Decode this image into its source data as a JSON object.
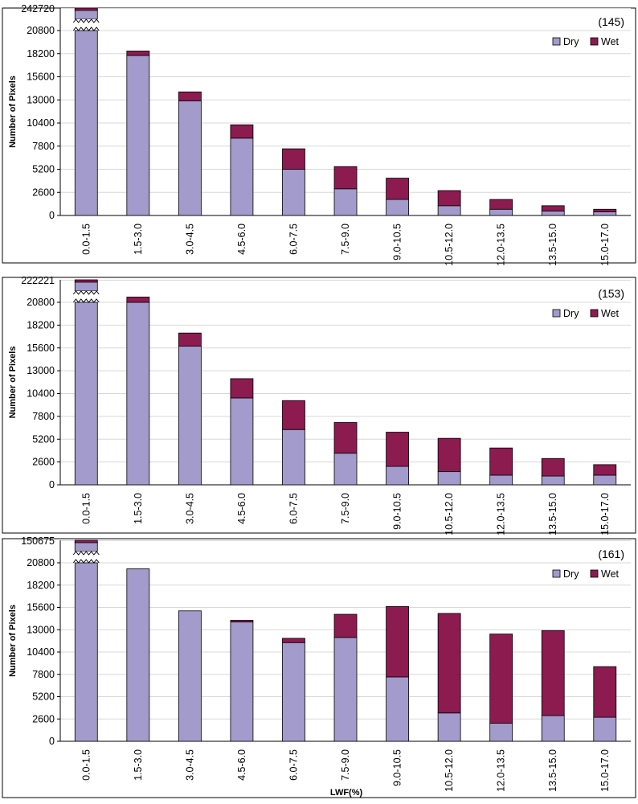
{
  "chart_data": [
    {
      "type": "bar",
      "stacked": true,
      "panel_label": "(145)",
      "ylabel": "Number of Pixels",
      "xlabel": "",
      "top_value_label": "242720",
      "yticks": [
        0,
        2600,
        5200,
        7800,
        10400,
        13000,
        15600,
        18200,
        20800
      ],
      "ylim": [
        0,
        23400
      ],
      "axis_break": true,
      "legend": [
        "Dry",
        "Wet"
      ],
      "categories": [
        "0.0-1.5",
        "1.5-3.0",
        "3.0-4.5",
        "4.5-6.0",
        "6.0-7.5",
        "7.5-9.0",
        "9.0-10.5",
        "10.5-12.0",
        "12.0-13.5",
        "13.5-15.0",
        "15.0-17.0"
      ],
      "series": [
        {
          "name": "Dry",
          "color": "#a39bcb",
          "values": [
            242700,
            18000,
            12900,
            8700,
            5200,
            3000,
            1800,
            1100,
            700,
            500,
            400
          ]
        },
        {
          "name": "Wet",
          "color": "#8c1b50",
          "values": [
            20,
            500,
            1000,
            1500,
            2300,
            2500,
            2400,
            1700,
            1100,
            600,
            300
          ]
        }
      ]
    },
    {
      "type": "bar",
      "stacked": true,
      "panel_label": "(153)",
      "ylabel": "Number of Pixels",
      "xlabel": "",
      "top_value_label": "222221",
      "yticks": [
        0,
        2600,
        5200,
        7800,
        10400,
        13000,
        15600,
        18200,
        20800
      ],
      "ylim": [
        0,
        23400
      ],
      "axis_break": true,
      "legend": [
        "Dry",
        "Wet"
      ],
      "categories": [
        "0.0-1.5",
        "1.5-3.0",
        "3.0-4.5",
        "4.5-6.0",
        "6.0-7.5",
        "7.5-9.0",
        "9.0-10.5",
        "10.5-12.0",
        "12.0-13.5",
        "13.5-15.0",
        "15.0-17.0"
      ],
      "series": [
        {
          "name": "Dry",
          "color": "#a39bcb",
          "values": [
            222200,
            20800,
            15800,
            9900,
            6300,
            3600,
            2100,
            1500,
            1100,
            1000,
            1100
          ]
        },
        {
          "name": "Wet",
          "color": "#8c1b50",
          "values": [
            21,
            600,
            1500,
            2200,
            3300,
            3500,
            3900,
            3800,
            3100,
            2000,
            1200
          ]
        }
      ]
    },
    {
      "type": "bar",
      "stacked": true,
      "panel_label": "(161)",
      "ylabel": "Number of Pixels",
      "xlabel": "LWF(%)",
      "top_value_label": "150675",
      "yticks": [
        0,
        2600,
        5200,
        7800,
        10400,
        13000,
        15600,
        18200,
        20800
      ],
      "ylim": [
        0,
        23400
      ],
      "axis_break": true,
      "legend": [
        "Dry",
        "Wet"
      ],
      "categories": [
        "0.0-1.5",
        "1.5-3.0",
        "3.0-4.5",
        "4.5-6.0",
        "6.0-7.5",
        "7.5-9.0",
        "9.0-10.5",
        "10.5-12.0",
        "12.0-13.5",
        "13.5-15.0",
        "15.0-17.0"
      ],
      "series": [
        {
          "name": "Dry",
          "color": "#a39bcb",
          "values": [
            150600,
            20100,
            15200,
            13900,
            11500,
            12100,
            7500,
            3300,
            2100,
            3000,
            2800
          ]
        },
        {
          "name": "Wet",
          "color": "#8c1b50",
          "values": [
            75,
            0,
            0,
            200,
            500,
            2700,
            8200,
            11600,
            10400,
            9900,
            5900
          ]
        }
      ]
    }
  ]
}
